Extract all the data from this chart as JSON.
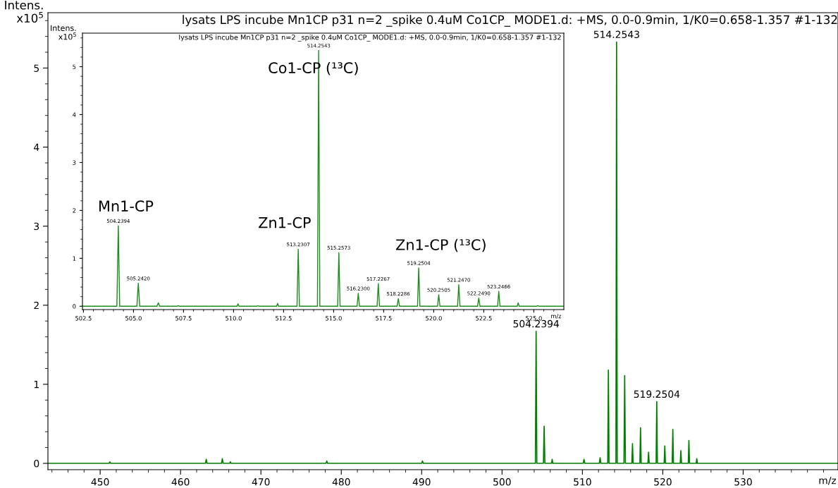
{
  "chart_data": [
    {
      "type": "line",
      "title": "lysats LPS incube Mn1CP p31 n=2 _spike 0.4uM Co1CP_ MODE1.d: +MS, 0.0-0.9min, 1/K0=0.658-1.357 #1-132",
      "xlabel": "m/z",
      "ylabel": "Intens.\nx10$^{5}$",
      "series": [
        {
          "color": "#008000",
          "x": [
            443.5,
            451.1,
            451.2,
            451.3,
            463.1,
            463.2,
            463.3,
            465.1,
            465.2,
            465.3,
            466.1,
            466.2,
            466.3,
            478.1,
            478.2,
            478.3,
            490.0,
            490.1,
            490.2,
            504.15,
            504.24,
            504.33,
            505.15,
            505.24,
            505.33,
            506.15,
            506.24,
            506.33,
            510.1,
            510.2,
            510.3,
            512.1,
            512.2,
            512.3,
            513.15,
            513.23,
            513.31,
            514.17,
            514.25,
            514.33,
            515.17,
            515.26,
            515.35,
            516.15,
            516.23,
            516.31,
            517.15,
            517.23,
            517.31,
            518.15,
            518.23,
            518.31,
            519.17,
            519.25,
            519.33,
            520.17,
            520.25,
            520.33,
            521.17,
            521.25,
            521.33,
            522.17,
            522.25,
            522.33,
            523.17,
            523.25,
            523.33,
            524.15,
            524.23,
            524.31,
            541.8
          ],
          "values": [
            0,
            0,
            0.02,
            0,
            0,
            0.05,
            0,
            0,
            0.06,
            0,
            0,
            0.02,
            0,
            0,
            0.03,
            0,
            0,
            0.03,
            0,
            0,
            1.67,
            0,
            0,
            0.47,
            0,
            0,
            0.05,
            0,
            0,
            0.05,
            0,
            0,
            0.07,
            0,
            0,
            1.18,
            0,
            0,
            5.33,
            0,
            0,
            1.11,
            0,
            0,
            0.25,
            0,
            0,
            0.45,
            0,
            0,
            0.14,
            0,
            0,
            0.78,
            0,
            0,
            0.22,
            0,
            0,
            0.43,
            0,
            0,
            0.16,
            0,
            0,
            0.29,
            0,
            0,
            0.06,
            0,
            0
          ]
        }
      ],
      "xlim": [
        443.5,
        541.8
      ],
      "ylim": [
        -0.08,
        5.7
      ],
      "xticks": [
        450,
        460,
        470,
        480,
        490,
        500,
        510,
        520,
        530,
        {
          "value": 444,
          "label": null
        },
        {
          "value": 446,
          "label": null
        },
        {
          "value": 448,
          "label": null
        },
        {
          "value": 452,
          "label": null
        },
        {
          "value": 454,
          "label": null
        },
        {
          "value": 456,
          "label": null
        },
        {
          "value": 458,
          "label": null
        },
        {
          "value": 462,
          "label": null
        },
        {
          "value": 464,
          "label": null
        },
        {
          "value": 466,
          "label": null
        },
        {
          "value": 468,
          "label": null
        },
        {
          "value": 472,
          "label": null
        },
        {
          "value": 474,
          "label": null
        },
        {
          "value": 476,
          "label": null
        },
        {
          "value": 478,
          "label": null
        },
        {
          "value": 482,
          "label": null
        },
        {
          "value": 484,
          "label": null
        },
        {
          "value": 486,
          "label": null
        },
        {
          "value": 488,
          "label": null
        },
        {
          "value": 492,
          "label": null
        },
        {
          "value": 494,
          "label": null
        },
        {
          "value": 496,
          "label": null
        },
        {
          "value": 498,
          "label": null
        },
        {
          "value": 502,
          "label": null
        },
        {
          "value": 504,
          "label": null
        },
        {
          "value": 506,
          "label": null
        },
        {
          "value": 508,
          "label": null
        },
        {
          "value": 512,
          "label": null
        },
        {
          "value": 514,
          "label": null
        },
        {
          "value": 516,
          "label": null
        },
        {
          "value": 518,
          "label": null
        },
        {
          "value": 522,
          "label": null
        },
        {
          "value": 524,
          "label": null
        },
        {
          "value": 526,
          "label": null
        },
        {
          "value": 528,
          "label": null
        },
        {
          "value": 532,
          "label": null
        },
        {
          "value": 534,
          "label": null
        },
        {
          "value": 536,
          "label": null
        },
        {
          "value": 538,
          "label": null
        },
        {
          "value": 540,
          "label": null
        }
      ],
      "yticks": [
        0,
        1,
        2,
        3,
        4,
        5,
        {
          "value": 0.2,
          "label": null
        },
        {
          "value": 0.4,
          "label": null
        },
        {
          "value": 0.6,
          "label": null
        },
        {
          "value": 0.8,
          "label": null
        },
        {
          "value": 1.2,
          "label": null
        },
        {
          "value": 1.4,
          "label": null
        },
        {
          "value": 1.6,
          "label": null
        },
        {
          "value": 1.8,
          "label": null
        },
        {
          "value": 2.2,
          "label": null
        },
        {
          "value": 2.4,
          "label": null
        },
        {
          "value": 2.6,
          "label": null
        },
        {
          "value": 2.8,
          "label": null
        },
        {
          "value": 3.2,
          "label": null
        },
        {
          "value": 3.4,
          "label": null
        },
        {
          "value": 3.6,
          "label": null
        },
        {
          "value": 3.8,
          "label": null
        },
        {
          "value": 4.2,
          "label": null
        },
        {
          "value": 4.4,
          "label": null
        },
        {
          "value": 4.6,
          "label": null
        },
        {
          "value": 4.8,
          "label": null
        },
        {
          "value": 5.2,
          "label": null
        },
        {
          "value": 5.4,
          "label": null
        },
        {
          "value": 5.6,
          "label": null
        }
      ],
      "annotations": [
        {
          "text": "504.2394",
          "x": 504.2394,
          "y": 1.67
        },
        {
          "text": "514.2543",
          "x": 514.2543,
          "y": 5.33
        },
        {
          "text": "519.2504",
          "x": 519.2504,
          "y": 0.78
        }
      ],
      "grid": false,
      "legend": false,
      "marker": "none",
      "line_style": "solid"
    },
    {
      "type": "line",
      "title": "lysats LPS incube Mn1CP p31 n=2 _spike 0.4uM Co1CP_ MODE1.d: +MS, 0.0-0.9min, 1/K0=0.658-1.357 #1-132",
      "xlabel": "m/z",
      "ylabel": "Intens.\nx10$^{5}$",
      "series": [
        {
          "color": "#1e8c1e",
          "x": [
            502.45,
            504.17,
            504.24,
            504.31,
            505.17,
            505.24,
            505.31,
            506.17,
            506.24,
            506.31,
            507.17,
            507.24,
            507.31,
            510.17,
            510.22,
            510.27,
            511.17,
            511.22,
            511.27,
            512.15,
            512.2,
            512.25,
            513.17,
            513.23,
            513.29,
            514.19,
            514.25,
            514.31,
            515.2,
            515.26,
            515.32,
            516.17,
            516.23,
            516.29,
            517.17,
            517.23,
            517.29,
            518.17,
            518.23,
            518.29,
            519.19,
            519.25,
            519.31,
            520.19,
            520.25,
            520.31,
            521.19,
            521.25,
            521.31,
            522.19,
            522.25,
            522.31,
            523.19,
            523.25,
            523.31,
            524.17,
            524.22,
            524.27,
            525.15,
            525.2,
            525.25,
            526.5
          ],
          "values": [
            0,
            0,
            1.68,
            0,
            0,
            0.48,
            0,
            0,
            0.07,
            0,
            0,
            0.01,
            0,
            0,
            0.05,
            0,
            0,
            0.01,
            0,
            0,
            0.06,
            0,
            0,
            1.19,
            0,
            0,
            5.34,
            0,
            0,
            1.12,
            0,
            0,
            0.27,
            0,
            0,
            0.47,
            0,
            0,
            0.16,
            0,
            0,
            0.8,
            0,
            0,
            0.24,
            0,
            0,
            0.45,
            0,
            0,
            0.17,
            0,
            0,
            0.31,
            0,
            0,
            0.07,
            0,
            0,
            0.01,
            0,
            0
          ]
        }
      ],
      "xlim": [
        502.45,
        526.5
      ],
      "ylim": [
        -0.07,
        5.7
      ],
      "xticks": [
        {
          "value": 502.5,
          "label": "502.5"
        },
        {
          "value": 505,
          "label": "505.0"
        },
        {
          "value": 507.5,
          "label": "507.5"
        },
        {
          "value": 510,
          "label": "510.0"
        },
        {
          "value": 512.5,
          "label": "512.5"
        },
        {
          "value": 515,
          "label": "515.0"
        },
        {
          "value": 517.5,
          "label": "517.5"
        },
        {
          "value": 520,
          "label": "520.0"
        },
        {
          "value": 522.5,
          "label": "522.5"
        },
        {
          "value": 525,
          "label": "525.0"
        },
        {
          "value": 503,
          "label": null
        },
        {
          "value": 503.5,
          "label": null
        },
        {
          "value": 504,
          "label": null
        },
        {
          "value": 504.5,
          "label": null
        },
        {
          "value": 505.5,
          "label": null
        },
        {
          "value": 506,
          "label": null
        },
        {
          "value": 506.5,
          "label": null
        },
        {
          "value": 507,
          "label": null
        },
        {
          "value": 508,
          "label": null
        },
        {
          "value": 508.5,
          "label": null
        },
        {
          "value": 509,
          "label": null
        },
        {
          "value": 509.5,
          "label": null
        },
        {
          "value": 510.5,
          "label": null
        },
        {
          "value": 511,
          "label": null
        },
        {
          "value": 511.5,
          "label": null
        },
        {
          "value": 512,
          "label": null
        },
        {
          "value": 513,
          "label": null
        },
        {
          "value": 513.5,
          "label": null
        },
        {
          "value": 514,
          "label": null
        },
        {
          "value": 514.5,
          "label": null
        },
        {
          "value": 515.5,
          "label": null
        },
        {
          "value": 516,
          "label": null
        },
        {
          "value": 516.5,
          "label": null
        },
        {
          "value": 517,
          "label": null
        },
        {
          "value": 518,
          "label": null
        },
        {
          "value": 518.5,
          "label": null
        },
        {
          "value": 519,
          "label": null
        },
        {
          "value": 519.5,
          "label": null
        },
        {
          "value": 520.5,
          "label": null
        },
        {
          "value": 521,
          "label": null
        },
        {
          "value": 521.5,
          "label": null
        },
        {
          "value": 522,
          "label": null
        },
        {
          "value": 523,
          "label": null
        },
        {
          "value": 523.5,
          "label": null
        },
        {
          "value": 524,
          "label": null
        },
        {
          "value": 524.5,
          "label": null
        },
        {
          "value": 525.5,
          "label": null
        },
        {
          "value": 526,
          "label": null
        }
      ],
      "yticks": [
        0,
        1,
        2,
        3,
        4,
        5,
        {
          "value": 0.2,
          "label": null
        },
        {
          "value": 0.4,
          "label": null
        },
        {
          "value": 0.6,
          "label": null
        },
        {
          "value": 0.8,
          "label": null
        },
        {
          "value": 1.2,
          "label": null
        },
        {
          "value": 1.4,
          "label": null
        },
        {
          "value": 1.6,
          "label": null
        },
        {
          "value": 1.8,
          "label": null
        },
        {
          "value": 2.2,
          "label": null
        },
        {
          "value": 2.4,
          "label": null
        },
        {
          "value": 2.6,
          "label": null
        },
        {
          "value": 2.8,
          "label": null
        },
        {
          "value": 3.2,
          "label": null
        },
        {
          "value": 3.4,
          "label": null
        },
        {
          "value": 3.6,
          "label": null
        },
        {
          "value": 3.8,
          "label": null
        },
        {
          "value": 4.2,
          "label": null
        },
        {
          "value": 4.4,
          "label": null
        },
        {
          "value": 4.6,
          "label": null
        },
        {
          "value": 4.8,
          "label": null
        },
        {
          "value": 5.2,
          "label": null
        },
        {
          "value": 5.4,
          "label": null
        },
        {
          "value": 5.6,
          "label": null
        }
      ],
      "annotations": [
        {
          "text": "504.2394",
          "x": 504.2394,
          "y": 1.68
        },
        {
          "text": "505.2420",
          "x": 505.242,
          "y": 0.48
        },
        {
          "text": "513.2307",
          "x": 513.2307,
          "y": 1.19
        },
        {
          "text": "514.2543",
          "x": 514.2543,
          "y": 5.34
        },
        {
          "text": "515.2573",
          "x": 515.2573,
          "y": 1.12
        },
        {
          "text": "516.2300",
          "x": 516.23,
          "y": 0.27
        },
        {
          "text": "517.2267",
          "x": 517.2267,
          "y": 0.47
        },
        {
          "text": "518.2286",
          "x": 518.2286,
          "y": 0.16
        },
        {
          "text": "519.2504",
          "x": 519.2504,
          "y": 0.8
        },
        {
          "text": "520.2505",
          "x": 520.2505,
          "y": 0.24
        },
        {
          "text": "521.2470",
          "x": 521.247,
          "y": 0.45
        },
        {
          "text": "522.2490",
          "x": 522.249,
          "y": 0.17
        },
        {
          "text": "523.2466",
          "x": 523.2466,
          "y": 0.31
        },
        "Mn1-CP",
        "Zn1-CP",
        "Co1-CP (¹³C)",
        "Zn1-CP (¹³C)"
      ],
      "grid": false,
      "legend": false,
      "marker": "none",
      "line_style": "solid"
    }
  ]
}
